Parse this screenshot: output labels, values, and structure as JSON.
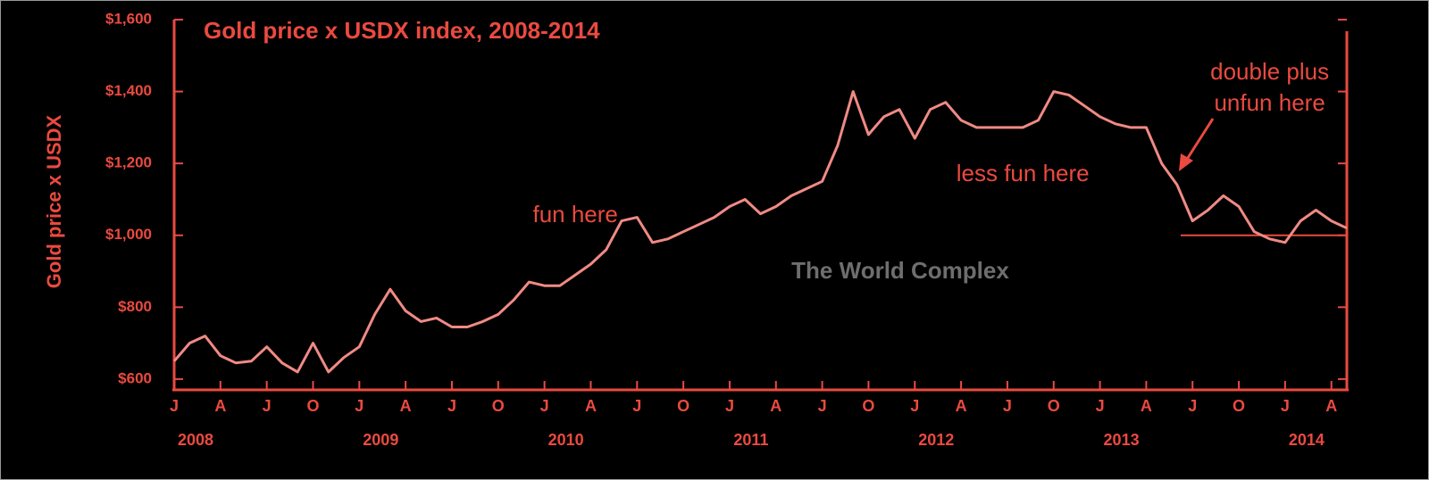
{
  "chart_data": {
    "type": "line",
    "title": "Gold price x USDX index, 2008-2014",
    "y_label": "Gold price x USDX",
    "watermark": "The World Complex",
    "annotations": [
      {
        "text": "fun here",
        "x": "2010-03"
      },
      {
        "text": "less fun here",
        "x": "2012-08"
      },
      {
        "text": "double plus",
        "x": "2013-12"
      },
      {
        "text": "unfun here",
        "x": "2013-12"
      }
    ],
    "x": [
      "2008-01",
      "2008-02",
      "2008-03",
      "2008-04",
      "2008-05",
      "2008-06",
      "2008-07",
      "2008-08",
      "2008-09",
      "2008-10",
      "2008-11",
      "2008-12",
      "2009-01",
      "2009-02",
      "2009-03",
      "2009-04",
      "2009-05",
      "2009-06",
      "2009-07",
      "2009-08",
      "2009-09",
      "2009-10",
      "2009-11",
      "2009-12",
      "2010-01",
      "2010-02",
      "2010-03",
      "2010-04",
      "2010-05",
      "2010-06",
      "2010-07",
      "2010-08",
      "2010-09",
      "2010-10",
      "2010-11",
      "2010-12",
      "2011-01",
      "2011-02",
      "2011-03",
      "2011-04",
      "2011-05",
      "2011-06",
      "2011-07",
      "2011-08",
      "2011-09",
      "2011-10",
      "2011-11",
      "2011-12",
      "2012-01",
      "2012-02",
      "2012-03",
      "2012-04",
      "2012-05",
      "2012-06",
      "2012-07",
      "2012-08",
      "2012-09",
      "2012-10",
      "2012-11",
      "2012-12",
      "2013-01",
      "2013-02",
      "2013-03",
      "2013-04",
      "2013-05",
      "2013-06",
      "2013-07",
      "2013-08",
      "2013-09",
      "2013-10",
      "2013-11",
      "2013-12",
      "2014-01",
      "2014-02",
      "2014-03",
      "2014-04",
      "2014-05"
    ],
    "series": [
      {
        "name": "Gold price x USDX",
        "color": "#f08a84",
        "values": [
          650,
          700,
          720,
          665,
          645,
          650,
          690,
          645,
          620,
          700,
          620,
          660,
          690,
          780,
          850,
          790,
          760,
          770,
          745,
          745,
          760,
          780,
          820,
          870,
          860,
          860,
          890,
          920,
          960,
          1040,
          1050,
          980,
          990,
          1010,
          1030,
          1050,
          1080,
          1100,
          1060,
          1080,
          1110,
          1130,
          1150,
          1250,
          1400,
          1280,
          1330,
          1350,
          1270,
          1350,
          1370,
          1320,
          1300,
          1300,
          1300,
          1300,
          1320,
          1400,
          1390,
          1360,
          1330,
          1310,
          1300,
          1300,
          1200,
          1140,
          1040,
          1070,
          1110,
          1080,
          1010,
          990,
          980,
          1040,
          1070,
          1040,
          1020
        ]
      }
    ],
    "reference_line": {
      "value": 1000,
      "from": "2013-06"
    },
    "xlim": [
      "2008-01",
      "2014-05"
    ],
    "xticks": [
      {
        "value": "2008-01",
        "label": "J"
      },
      {
        "value": "2008-04",
        "label": "A"
      },
      {
        "value": "2008-07",
        "label": "J"
      },
      {
        "value": "2008-10",
        "label": "O"
      },
      {
        "value": "2009-01",
        "label": "J"
      },
      {
        "value": "2009-04",
        "label": "A"
      },
      {
        "value": "2009-07",
        "label": "J"
      },
      {
        "value": "2009-10",
        "label": "O"
      },
      {
        "value": "2010-01",
        "label": "J"
      },
      {
        "value": "2010-04",
        "label": "A"
      },
      {
        "value": "2010-07",
        "label": "J"
      },
      {
        "value": "2010-10",
        "label": "O"
      },
      {
        "value": "2011-01",
        "label": "J"
      },
      {
        "value": "2011-04",
        "label": "A"
      },
      {
        "value": "2011-07",
        "label": "J"
      },
      {
        "value": "2011-10",
        "label": "O"
      },
      {
        "value": "2012-01",
        "label": "J"
      },
      {
        "value": "2012-04",
        "label": "A"
      },
      {
        "value": "2012-07",
        "label": "J"
      },
      {
        "value": "2012-10",
        "label": "O"
      },
      {
        "value": "2013-01",
        "label": "J"
      },
      {
        "value": "2013-04",
        "label": "A"
      },
      {
        "value": "2013-07",
        "label": "J"
      },
      {
        "value": "2013-10",
        "label": "O"
      },
      {
        "value": "2014-01",
        "label": "J"
      },
      {
        "value": "2014-04",
        "label": "A"
      }
    ],
    "years": [
      2008,
      2009,
      2010,
      2011,
      2012,
      2013,
      2014
    ],
    "ylim": [
      570,
      1600
    ],
    "yticks": [
      {
        "value": 600,
        "label": "$600"
      },
      {
        "value": 800,
        "label": "$800"
      },
      {
        "value": 1000,
        "label": "$1,000"
      },
      {
        "value": 1200,
        "label": "$1,200"
      },
      {
        "value": 1400,
        "label": "$1,400"
      },
      {
        "value": 1600,
        "label": "$1,600"
      }
    ],
    "axis_color": "#ea4a40",
    "grid": false
  }
}
